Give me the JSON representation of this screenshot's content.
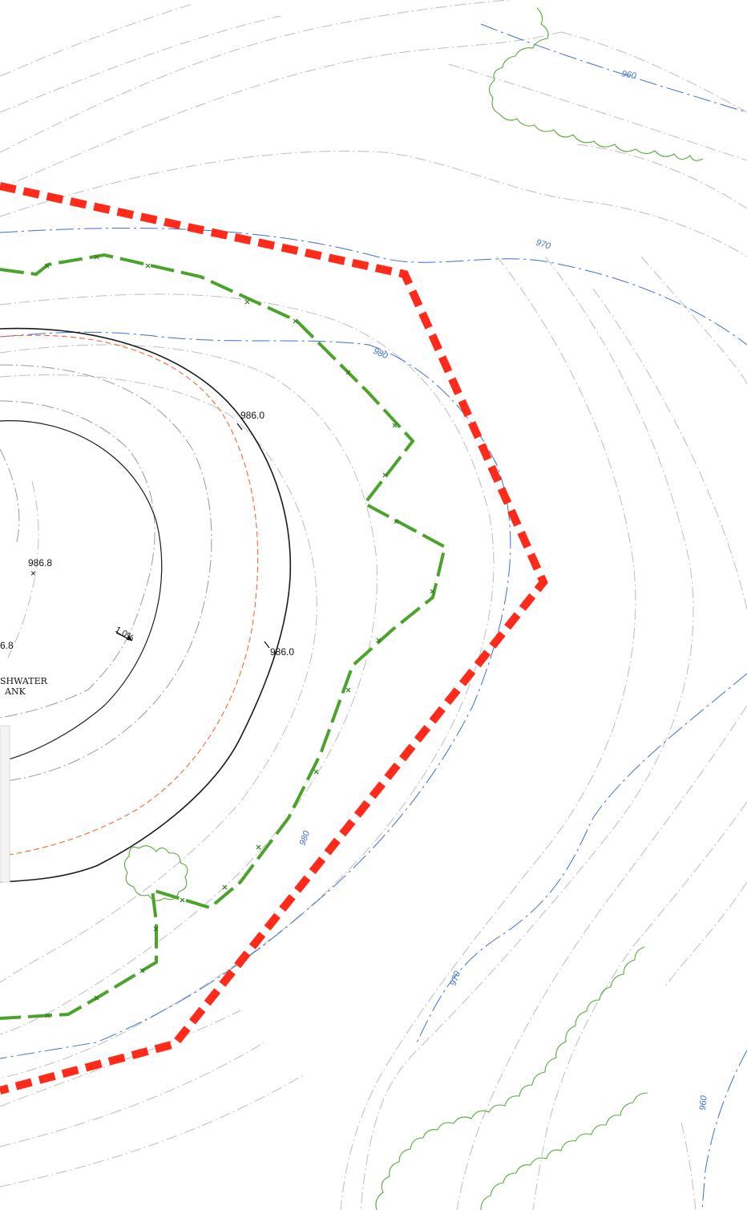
{
  "contour_labels": {
    "c960_top": "960",
    "c970_top": "970",
    "c980_upper": "980",
    "c980_lower": "980",
    "c970_lower": "970",
    "c960_lower": "960"
  },
  "spot_elevations": {
    "pad_top": "986.0",
    "pad_right": "986.0",
    "tank_center": "986.8",
    "tank_left_partial": "6.8"
  },
  "tank_label": {
    "line1": "SHWATER",
    "line2": "ANK"
  },
  "slope_label": "1.0%",
  "colors": {
    "boundary": "#ff2a1a",
    "fence": "#4aa32a",
    "tree_line": "#5aa83c",
    "contour_minor": "#b8b8b8",
    "contour_major": "#3d6fd0",
    "pad_edge": "#1a1a1a",
    "offset_line": "#f06a30"
  }
}
